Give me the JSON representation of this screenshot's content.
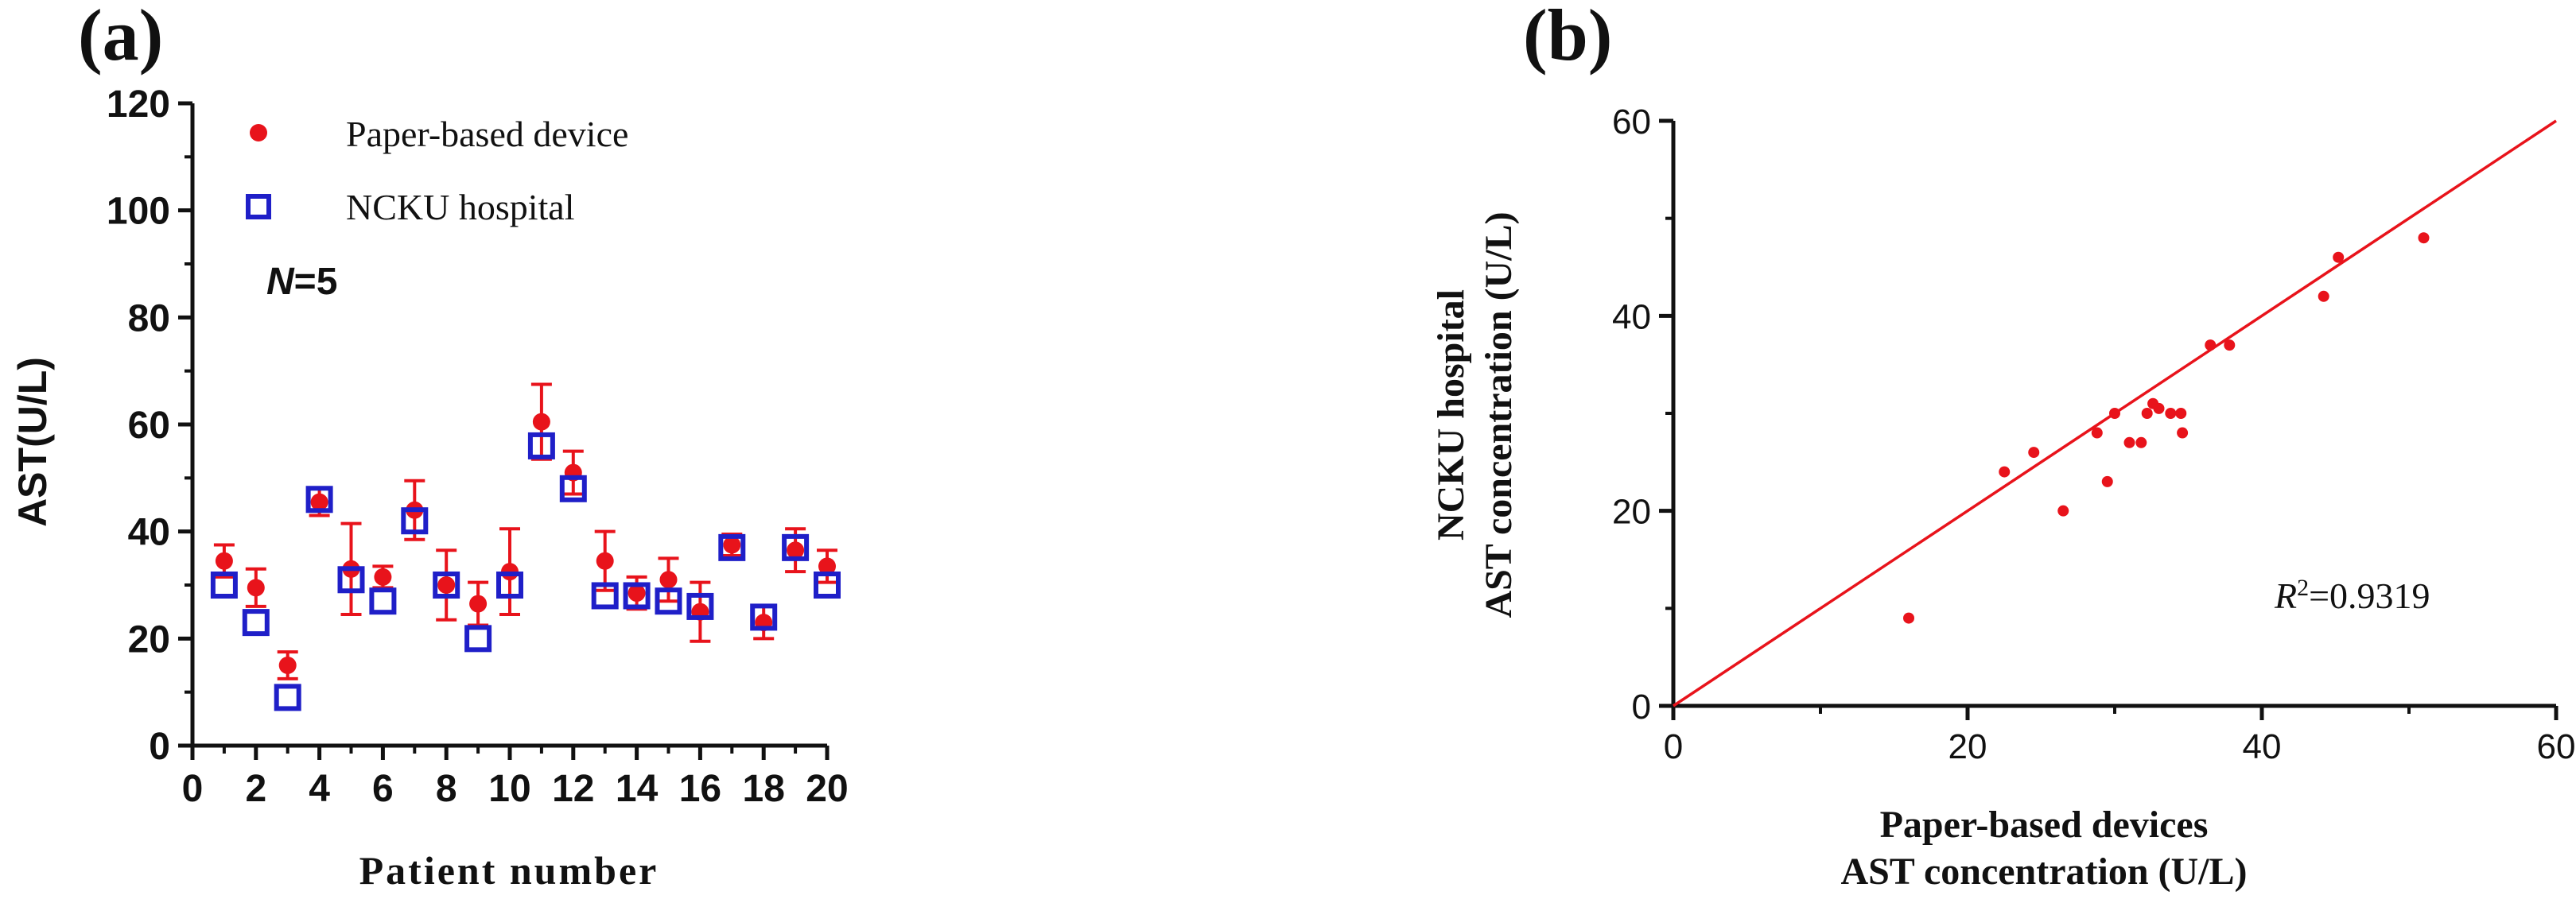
{
  "colors": {
    "paper": "#e8131b",
    "hospital": "#1f1fc8",
    "axis": "#111111",
    "fit": "#e8131b"
  },
  "chart_data": [
    {
      "panel": "(a)",
      "type": "scatter",
      "xlabel": "Patient number",
      "ylabel": "AST(U/L)",
      "xlim": [
        0,
        20
      ],
      "ylim": [
        0,
        120
      ],
      "xticks": [
        "0",
        "2",
        "4",
        "6",
        "8",
        "10",
        "12",
        "14",
        "16",
        "18",
        "20"
      ],
      "yticks": [
        "0",
        "20",
        "40",
        "60",
        "80",
        "100",
        "120"
      ],
      "annotation_n_italic": "N",
      "annotation_n_rest": "=5",
      "legend_position": "top-left",
      "series": [
        {
          "name": "Paper-based device",
          "marker": "filled-circle",
          "x": [
            1,
            2,
            3,
            4,
            5,
            6,
            7,
            8,
            9,
            10,
            11,
            12,
            13,
            14,
            15,
            16,
            17,
            18,
            19,
            20
          ],
          "y": [
            34.5,
            29.5,
            15,
            45.5,
            33,
            31.5,
            44,
            30,
            26.5,
            32.5,
            60.5,
            51,
            34.5,
            28.5,
            31,
            25,
            37.5,
            23,
            36.5,
            33.5
          ],
          "err": [
            3,
            3.5,
            2.5,
            2.5,
            8.5,
            2,
            5.5,
            6.5,
            4,
            8,
            7,
            4,
            5.5,
            3,
            4,
            5.5,
            2,
            3,
            4,
            3
          ]
        },
        {
          "name": "NCKU hospital",
          "marker": "open-square",
          "x": [
            1,
            2,
            3,
            4,
            5,
            6,
            7,
            8,
            9,
            10,
            11,
            12,
            13,
            14,
            15,
            16,
            17,
            18,
            19,
            20
          ],
          "y": [
            30,
            23,
            9,
            46,
            31,
            27,
            42,
            30,
            20,
            30,
            56,
            48,
            28,
            28,
            27,
            26,
            37,
            24,
            37,
            30
          ]
        }
      ]
    },
    {
      "panel": "(b)",
      "type": "scatter",
      "xlabel_line1": "Paper-based devices",
      "xlabel_line2": "AST concentration (U/L)",
      "ylabel_line1": "NCKU hospital",
      "ylabel_line2": "AST concentration (U/L)",
      "xlim": [
        0,
        60
      ],
      "ylim": [
        0,
        60
      ],
      "xticks": [
        "0",
        "20",
        "40",
        "60"
      ],
      "yticks": [
        "0",
        "20",
        "40",
        "60"
      ],
      "r2_symbol": "R",
      "r2_sup": "2",
      "r2_value": "=0.9319",
      "fit_line": {
        "slope": 1.0,
        "intercept": 0
      },
      "points": {
        "x": [
          16,
          22.5,
          24.5,
          26.5,
          28.8,
          29.5,
          30,
          31,
          31.8,
          32.2,
          32.6,
          33,
          33.8,
          34.5,
          34.6,
          36.5,
          37.8,
          44.2,
          45.2,
          51
        ],
        "y": [
          9,
          24,
          26,
          20,
          28,
          23,
          30,
          27,
          27,
          30,
          31,
          30.5,
          30,
          30,
          28,
          37,
          37,
          42,
          46,
          48
        ]
      }
    }
  ]
}
